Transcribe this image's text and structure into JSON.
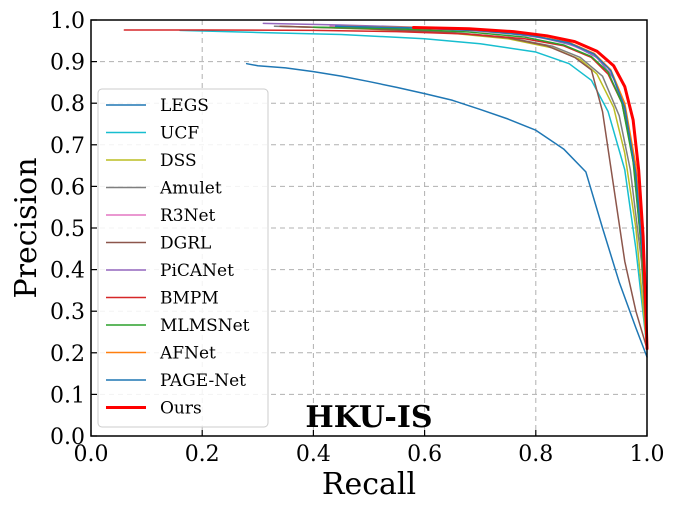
{
  "chart_data": {
    "type": "line",
    "title": "",
    "xlabel": "Recall",
    "ylabel": "Precision",
    "annotation": "HKU-IS",
    "xlim": [
      0.0,
      1.0
    ],
    "ylim": [
      0.0,
      1.0
    ],
    "xticks": [
      "0.0",
      "0.2",
      "0.4",
      "0.6",
      "0.8",
      "1.0"
    ],
    "yticks": [
      "0.0",
      "0.1",
      "0.2",
      "0.3",
      "0.4",
      "0.5",
      "0.6",
      "0.7",
      "0.8",
      "0.9",
      "1.0"
    ],
    "grid": true,
    "grid_style": "dashed",
    "legend_position": "lower-left",
    "series": [
      {
        "name": "LEGS",
        "color": "#1f77b4",
        "linewidth": 1.5,
        "points": [
          [
            0.28,
            0.895
          ],
          [
            0.3,
            0.89
          ],
          [
            0.35,
            0.885
          ],
          [
            0.4,
            0.876
          ],
          [
            0.45,
            0.865
          ],
          [
            0.5,
            0.852
          ],
          [
            0.55,
            0.838
          ],
          [
            0.6,
            0.823
          ],
          [
            0.65,
            0.807
          ],
          [
            0.7,
            0.785
          ],
          [
            0.75,
            0.762
          ],
          [
            0.8,
            0.735
          ],
          [
            0.85,
            0.69
          ],
          [
            0.89,
            0.635
          ],
          [
            0.92,
            0.5
          ],
          [
            0.95,
            0.37
          ],
          [
            0.98,
            0.26
          ],
          [
            1.0,
            0.19
          ]
        ]
      },
      {
        "name": "UCF",
        "color": "#17becf",
        "linewidth": 1.5,
        "points": [
          [
            0.16,
            0.975
          ],
          [
            0.3,
            0.97
          ],
          [
            0.45,
            0.965
          ],
          [
            0.6,
            0.955
          ],
          [
            0.7,
            0.943
          ],
          [
            0.8,
            0.923
          ],
          [
            0.86,
            0.895
          ],
          [
            0.9,
            0.855
          ],
          [
            0.93,
            0.78
          ],
          [
            0.96,
            0.64
          ],
          [
            0.98,
            0.45
          ],
          [
            1.0,
            0.21
          ]
        ]
      },
      {
        "name": "DSS",
        "color": "#bcbd22",
        "linewidth": 1.5,
        "points": [
          [
            0.34,
            0.985
          ],
          [
            0.5,
            0.978
          ],
          [
            0.65,
            0.968
          ],
          [
            0.75,
            0.955
          ],
          [
            0.83,
            0.933
          ],
          [
            0.88,
            0.905
          ],
          [
            0.91,
            0.87
          ],
          [
            0.94,
            0.79
          ],
          [
            0.96,
            0.68
          ],
          [
            0.98,
            0.5
          ],
          [
            1.0,
            0.21
          ]
        ]
      },
      {
        "name": "Amulet",
        "color": "#7f7f7f",
        "linewidth": 1.5,
        "points": [
          [
            0.33,
            0.985
          ],
          [
            0.5,
            0.979
          ],
          [
            0.65,
            0.97
          ],
          [
            0.75,
            0.958
          ],
          [
            0.83,
            0.937
          ],
          [
            0.88,
            0.91
          ],
          [
            0.92,
            0.865
          ],
          [
            0.95,
            0.77
          ],
          [
            0.97,
            0.64
          ],
          [
            0.99,
            0.42
          ],
          [
            1.0,
            0.21
          ]
        ]
      },
      {
        "name": "R3Net",
        "color": "#e377c2",
        "linewidth": 1.5,
        "points": [
          [
            0.43,
            0.985
          ],
          [
            0.55,
            0.982
          ],
          [
            0.68,
            0.975
          ],
          [
            0.78,
            0.964
          ],
          [
            0.85,
            0.947
          ],
          [
            0.9,
            0.92
          ],
          [
            0.93,
            0.885
          ],
          [
            0.95,
            0.83
          ],
          [
            0.97,
            0.72
          ],
          [
            0.985,
            0.55
          ],
          [
            1.0,
            0.22
          ]
        ]
      },
      {
        "name": "DGRL",
        "color": "#8c564b",
        "linewidth": 1.5,
        "points": [
          [
            0.34,
            0.985
          ],
          [
            0.5,
            0.979
          ],
          [
            0.65,
            0.969
          ],
          [
            0.75,
            0.957
          ],
          [
            0.82,
            0.938
          ],
          [
            0.87,
            0.91
          ],
          [
            0.9,
            0.88
          ],
          [
            0.92,
            0.78
          ],
          [
            0.94,
            0.6
          ],
          [
            0.96,
            0.42
          ],
          [
            0.98,
            0.3
          ],
          [
            1.0,
            0.21
          ]
        ]
      },
      {
        "name": "PiCANet",
        "color": "#9467bd",
        "linewidth": 1.5,
        "points": [
          [
            0.31,
            0.992
          ],
          [
            0.45,
            0.988
          ],
          [
            0.6,
            0.982
          ],
          [
            0.72,
            0.973
          ],
          [
            0.81,
            0.958
          ],
          [
            0.87,
            0.938
          ],
          [
            0.91,
            0.91
          ],
          [
            0.94,
            0.86
          ],
          [
            0.96,
            0.78
          ],
          [
            0.98,
            0.62
          ],
          [
            0.995,
            0.4
          ],
          [
            1.0,
            0.22
          ]
        ]
      },
      {
        "name": "BMPM",
        "color": "#d62728",
        "linewidth": 1.5,
        "points": [
          [
            0.06,
            0.976
          ],
          [
            0.2,
            0.976
          ],
          [
            0.4,
            0.975
          ],
          [
            0.55,
            0.972
          ],
          [
            0.68,
            0.966
          ],
          [
            0.78,
            0.955
          ],
          [
            0.85,
            0.938
          ],
          [
            0.9,
            0.91
          ],
          [
            0.93,
            0.87
          ],
          [
            0.955,
            0.8
          ],
          [
            0.975,
            0.67
          ],
          [
            0.99,
            0.45
          ],
          [
            1.0,
            0.22
          ]
        ]
      },
      {
        "name": "MLMSNet",
        "color": "#2ca02c",
        "linewidth": 1.5,
        "points": [
          [
            0.4,
            0.983
          ],
          [
            0.55,
            0.979
          ],
          [
            0.68,
            0.971
          ],
          [
            0.78,
            0.959
          ],
          [
            0.85,
            0.94
          ],
          [
            0.9,
            0.912
          ],
          [
            0.93,
            0.875
          ],
          [
            0.955,
            0.8
          ],
          [
            0.975,
            0.66
          ],
          [
            0.99,
            0.45
          ],
          [
            1.0,
            0.21
          ]
        ]
      },
      {
        "name": "AFNet",
        "color": "#ff7f0e",
        "linewidth": 1.5,
        "points": [
          [
            0.45,
            0.985
          ],
          [
            0.58,
            0.982
          ],
          [
            0.7,
            0.975
          ],
          [
            0.79,
            0.964
          ],
          [
            0.86,
            0.946
          ],
          [
            0.905,
            0.92
          ],
          [
            0.935,
            0.88
          ],
          [
            0.96,
            0.8
          ],
          [
            0.98,
            0.65
          ],
          [
            0.993,
            0.45
          ],
          [
            1.0,
            0.22
          ]
        ]
      },
      {
        "name": "PAGE-Net",
        "color": "#1f77b4",
        "linewidth": 1.5,
        "points": [
          [
            0.44,
            0.985
          ],
          [
            0.58,
            0.981
          ],
          [
            0.7,
            0.974
          ],
          [
            0.79,
            0.963
          ],
          [
            0.86,
            0.945
          ],
          [
            0.905,
            0.918
          ],
          [
            0.935,
            0.878
          ],
          [
            0.96,
            0.79
          ],
          [
            0.98,
            0.63
          ],
          [
            0.993,
            0.42
          ],
          [
            1.0,
            0.21
          ]
        ]
      },
      {
        "name": "Ours",
        "color": "#ff0000",
        "linewidth": 3,
        "points": [
          [
            0.58,
            0.982
          ],
          [
            0.68,
            0.979
          ],
          [
            0.76,
            0.972
          ],
          [
            0.82,
            0.962
          ],
          [
            0.87,
            0.948
          ],
          [
            0.91,
            0.925
          ],
          [
            0.94,
            0.89
          ],
          [
            0.96,
            0.84
          ],
          [
            0.975,
            0.76
          ],
          [
            0.985,
            0.64
          ],
          [
            0.993,
            0.48
          ],
          [
            0.998,
            0.3
          ],
          [
            1.0,
            0.21
          ]
        ]
      }
    ]
  }
}
